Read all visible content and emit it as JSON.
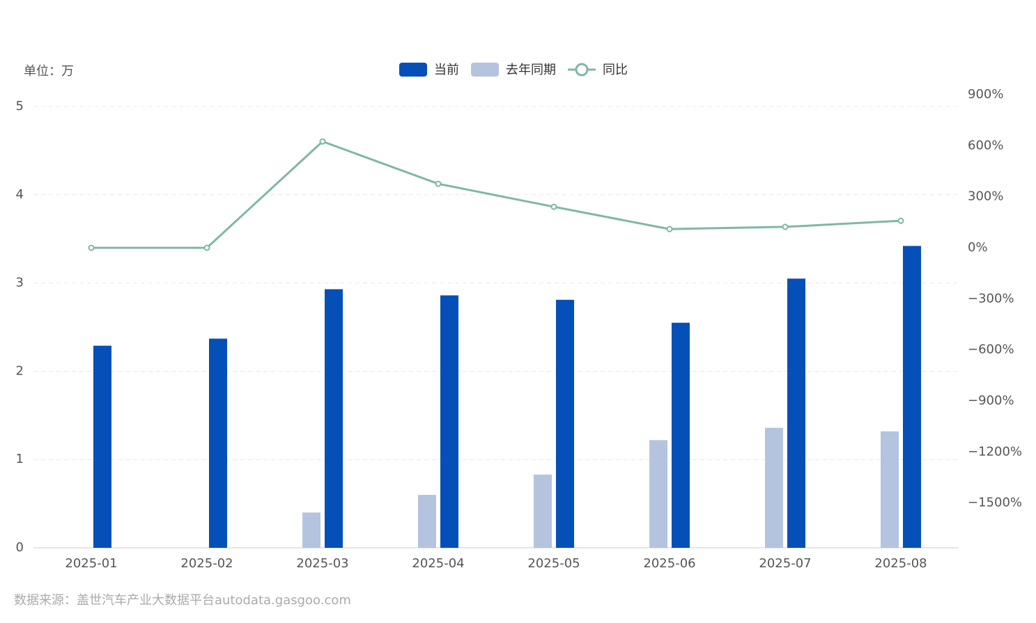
{
  "chart_data": {
    "type": "bar",
    "unit_label": "单位：万",
    "source": "数据来源：盖世汽车产业大数据平台autodata.gasgoo.com",
    "categories": [
      "2025-01",
      "2025-02",
      "2025-03",
      "2025-04",
      "2025-05",
      "2025-06",
      "2025-07",
      "2025-08"
    ],
    "series": [
      {
        "name": "当前",
        "color": "#0450b8",
        "values": [
          2.29,
          2.37,
          2.93,
          2.86,
          2.81,
          2.55,
          3.05,
          3.42
        ]
      },
      {
        "name": "去年同期",
        "color": "#b4c4df",
        "values": [
          null,
          null,
          0.4,
          0.6,
          0.83,
          1.22,
          1.36,
          1.32
        ]
      },
      {
        "name": "同比",
        "color": "#7fb8a0",
        "type": "line",
        "axis": "y2",
        "values": [
          0,
          0,
          625,
          376,
          241,
          110,
          123,
          159
        ]
      }
    ],
    "ylim": [
      0,
      5
    ],
    "yticks": [
      0,
      1,
      2,
      3,
      4,
      5
    ],
    "y2lim": [
      -1800,
      900
    ],
    "y2ticks": [
      {
        "value": -1500,
        "label": "−1500%"
      },
      {
        "value": -1200,
        "label": "−1200%"
      },
      {
        "value": -900,
        "label": "−900%"
      },
      {
        "value": -600,
        "label": "−600%"
      },
      {
        "value": -300,
        "label": "−300%"
      },
      {
        "value": 0,
        "label": "0%"
      },
      {
        "value": 300,
        "label": "300%"
      },
      {
        "value": 600,
        "label": "600%"
      },
      {
        "value": 900,
        "label": "900%"
      }
    ],
    "grid": true,
    "legend": "top"
  }
}
